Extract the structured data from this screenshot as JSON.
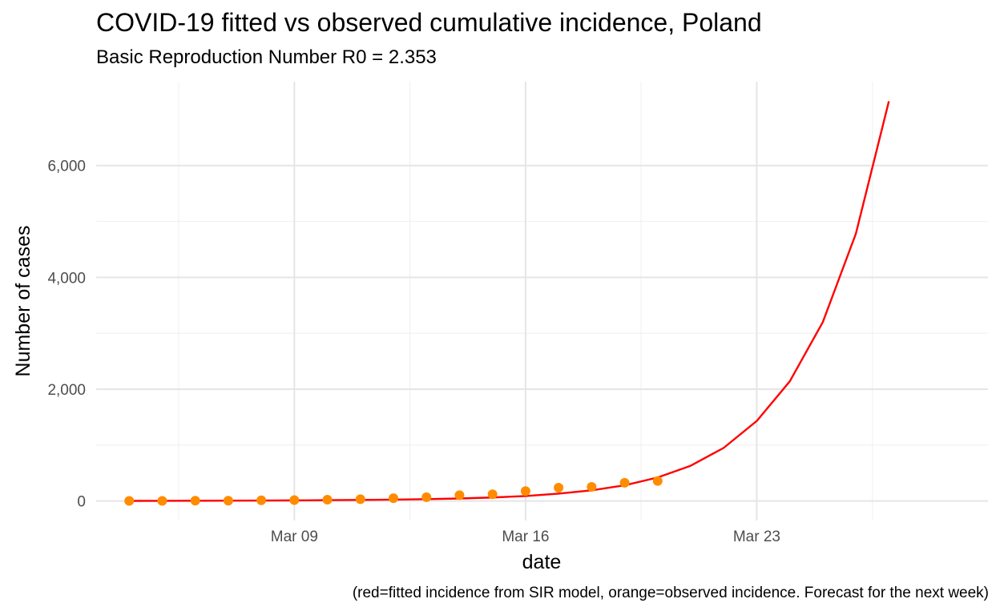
{
  "chart_data": {
    "type": "line",
    "title": "COVID-19 fitted vs observed cumulative incidence, Poland",
    "subtitle": "Basic Reproduction Number R0 = 2.353",
    "xlabel": "date",
    "ylabel": "Number of cases",
    "caption": "(red=fitted incidence from SIR model, orange=observed incidence. Forecast for the next week)",
    "x_tick_labels": [
      "Mar 09",
      "Mar 16",
      "Mar 23"
    ],
    "y_tick_labels": [
      "0",
      "2,000",
      "4,000",
      "6,000"
    ],
    "y_ticks": [
      0,
      2000,
      4000,
      6000
    ],
    "xlim": [
      "2020-03-03",
      "2020-03-30"
    ],
    "ylim": [
      -350,
      7500
    ],
    "grid": true,
    "series": [
      {
        "type": "line",
        "color": "#ff0000",
        "points": [
          {
            "x": "2020-03-04",
            "y": 1
          },
          {
            "x": "2020-03-05",
            "y": 2
          },
          {
            "x": "2020-03-06",
            "y": 3
          },
          {
            "x": "2020-03-07",
            "y": 5
          },
          {
            "x": "2020-03-08",
            "y": 7
          },
          {
            "x": "2020-03-09",
            "y": 10
          },
          {
            "x": "2020-03-10",
            "y": 14
          },
          {
            "x": "2020-03-11",
            "y": 18
          },
          {
            "x": "2020-03-12",
            "y": 24
          },
          {
            "x": "2020-03-13",
            "y": 32
          },
          {
            "x": "2020-03-14",
            "y": 44
          },
          {
            "x": "2020-03-15",
            "y": 62
          },
          {
            "x": "2020-03-16",
            "y": 88
          },
          {
            "x": "2020-03-17",
            "y": 130
          },
          {
            "x": "2020-03-18",
            "y": 190
          },
          {
            "x": "2020-03-19",
            "y": 280
          },
          {
            "x": "2020-03-20",
            "y": 420
          },
          {
            "x": "2020-03-21",
            "y": 630
          },
          {
            "x": "2020-03-22",
            "y": 950
          },
          {
            "x": "2020-03-23",
            "y": 1430
          },
          {
            "x": "2020-03-24",
            "y": 2140
          },
          {
            "x": "2020-03-25",
            "y": 3200
          },
          {
            "x": "2020-03-26",
            "y": 4780
          },
          {
            "x": "2020-03-27",
            "y": 7150
          }
        ]
      },
      {
        "type": "scatter",
        "color": "#ff8c00",
        "points": [
          {
            "x": "2020-03-04",
            "y": 1
          },
          {
            "x": "2020-03-05",
            "y": 1
          },
          {
            "x": "2020-03-06",
            "y": 5
          },
          {
            "x": "2020-03-07",
            "y": 5
          },
          {
            "x": "2020-03-08",
            "y": 11
          },
          {
            "x": "2020-03-09",
            "y": 16
          },
          {
            "x": "2020-03-10",
            "y": 22
          },
          {
            "x": "2020-03-11",
            "y": 31
          },
          {
            "x": "2020-03-12",
            "y": 49
          },
          {
            "x": "2020-03-13",
            "y": 68
          },
          {
            "x": "2020-03-14",
            "y": 103
          },
          {
            "x": "2020-03-15",
            "y": 119
          },
          {
            "x": "2020-03-16",
            "y": 177
          },
          {
            "x": "2020-03-17",
            "y": 238
          },
          {
            "x": "2020-03-18",
            "y": 251
          },
          {
            "x": "2020-03-19",
            "y": 325
          },
          {
            "x": "2020-03-20",
            "y": 357
          }
        ]
      }
    ]
  }
}
